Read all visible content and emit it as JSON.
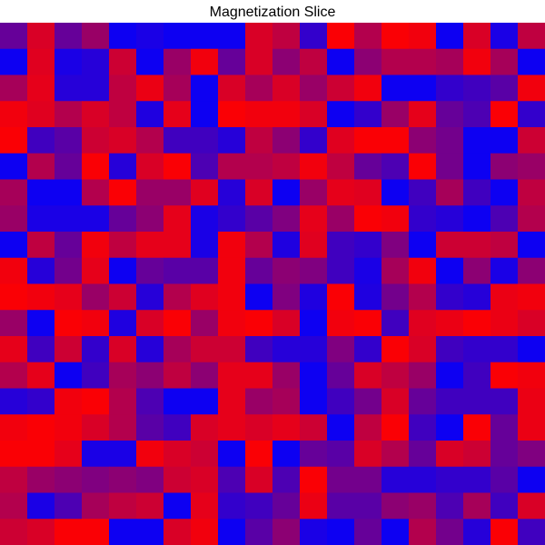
{
  "chart_data": {
    "type": "heatmap",
    "title": "Magnetization Slice",
    "rows": 20,
    "cols": 20,
    "colormap": {
      "low": "#0000ff",
      "high": "#ff0000"
    },
    "value_range": [
      0,
      1
    ],
    "values": [
      [
        0.4,
        0.85,
        0.4,
        0.6,
        0.05,
        0.1,
        0.05,
        0.05,
        0.05,
        0.85,
        0.75,
        0.2,
        0.98,
        0.7,
        0.98,
        0.95,
        0.05,
        0.85,
        0.1,
        0.75
      ],
      [
        0.05,
        0.88,
        0.1,
        0.15,
        0.8,
        0.05,
        0.6,
        0.95,
        0.4,
        0.85,
        0.55,
        0.75,
        0.05,
        0.55,
        0.7,
        0.7,
        0.65,
        0.95,
        0.65,
        0.05
      ],
      [
        0.65,
        0.9,
        0.15,
        0.15,
        0.75,
        0.92,
        0.65,
        0.05,
        0.85,
        0.65,
        0.85,
        0.6,
        0.8,
        0.95,
        0.05,
        0.05,
        0.2,
        0.25,
        0.35,
        0.95
      ],
      [
        0.95,
        0.88,
        0.7,
        0.85,
        0.75,
        0.12,
        0.9,
        0.05,
        0.98,
        0.95,
        0.95,
        0.85,
        0.05,
        0.2,
        0.6,
        0.9,
        0.4,
        0.3,
        0.98,
        0.2
      ],
      [
        0.98,
        0.25,
        0.35,
        0.8,
        0.85,
        0.7,
        0.25,
        0.25,
        0.15,
        0.75,
        0.55,
        0.2,
        0.88,
        0.98,
        0.98,
        0.55,
        0.45,
        0.05,
        0.05,
        0.8
      ],
      [
        0.05,
        0.7,
        0.4,
        0.98,
        0.15,
        0.85,
        0.98,
        0.3,
        0.7,
        0.7,
        0.75,
        0.95,
        0.75,
        0.4,
        0.3,
        0.98,
        0.45,
        0.05,
        0.55,
        0.6
      ],
      [
        0.65,
        0.05,
        0.05,
        0.7,
        0.98,
        0.6,
        0.6,
        0.88,
        0.15,
        0.85,
        0.05,
        0.6,
        0.9,
        0.88,
        0.05,
        0.25,
        0.65,
        0.25,
        0.05,
        0.75
      ],
      [
        0.6,
        0.1,
        0.1,
        0.1,
        0.4,
        0.55,
        0.9,
        0.1,
        0.2,
        0.35,
        0.5,
        0.9,
        0.6,
        0.98,
        0.95,
        0.2,
        0.15,
        0.05,
        0.3,
        0.7
      ],
      [
        0.05,
        0.75,
        0.4,
        0.95,
        0.75,
        0.9,
        0.9,
        0.1,
        0.95,
        0.7,
        0.12,
        0.88,
        0.25,
        0.2,
        0.5,
        0.05,
        0.8,
        0.8,
        0.75,
        0.05
      ],
      [
        0.95,
        0.15,
        0.45,
        0.9,
        0.05,
        0.4,
        0.35,
        0.35,
        0.95,
        0.4,
        0.55,
        0.5,
        0.25,
        0.1,
        0.65,
        0.95,
        0.05,
        0.55,
        0.1,
        0.55
      ],
      [
        0.98,
        0.95,
        0.9,
        0.6,
        0.8,
        0.15,
        0.7,
        0.88,
        0.95,
        0.05,
        0.5,
        0.12,
        0.98,
        0.12,
        0.45,
        0.7,
        0.2,
        0.15,
        0.92,
        0.95
      ],
      [
        0.6,
        0.05,
        0.98,
        0.95,
        0.12,
        0.85,
        0.98,
        0.6,
        0.95,
        0.98,
        0.85,
        0.05,
        0.95,
        0.98,
        0.25,
        0.88,
        0.92,
        0.98,
        0.92,
        0.85
      ],
      [
        0.9,
        0.25,
        0.8,
        0.2,
        0.85,
        0.15,
        0.65,
        0.8,
        0.8,
        0.25,
        0.15,
        0.15,
        0.5,
        0.2,
        0.98,
        0.85,
        0.25,
        0.2,
        0.2,
        0.05
      ],
      [
        0.7,
        0.9,
        0.05,
        0.25,
        0.65,
        0.55,
        0.75,
        0.55,
        0.9,
        0.9,
        0.6,
        0.05,
        0.4,
        0.85,
        0.75,
        0.6,
        0.05,
        0.25,
        0.98,
        0.95
      ],
      [
        0.15,
        0.2,
        0.95,
        0.98,
        0.7,
        0.3,
        0.05,
        0.05,
        0.9,
        0.6,
        0.65,
        0.05,
        0.25,
        0.45,
        0.85,
        0.4,
        0.25,
        0.25,
        0.25,
        0.92
      ],
      [
        0.95,
        0.98,
        0.95,
        0.85,
        0.7,
        0.35,
        0.25,
        0.85,
        0.9,
        0.85,
        0.9,
        0.8,
        0.05,
        0.75,
        0.98,
        0.25,
        0.05,
        0.98,
        0.4,
        0.92
      ],
      [
        0.98,
        0.98,
        0.9,
        0.1,
        0.1,
        0.95,
        0.85,
        0.8,
        0.05,
        0.98,
        0.05,
        0.4,
        0.35,
        0.85,
        0.7,
        0.4,
        0.85,
        0.8,
        0.4,
        0.5
      ],
      [
        0.75,
        0.6,
        0.55,
        0.5,
        0.55,
        0.5,
        0.8,
        0.85,
        0.3,
        0.85,
        0.3,
        0.98,
        0.45,
        0.45,
        0.15,
        0.15,
        0.2,
        0.2,
        0.35,
        0.05
      ],
      [
        0.7,
        0.1,
        0.3,
        0.65,
        0.75,
        0.8,
        0.05,
        0.9,
        0.2,
        0.25,
        0.4,
        0.92,
        0.35,
        0.35,
        0.55,
        0.6,
        0.3,
        0.65,
        0.25,
        0.85
      ],
      [
        0.8,
        0.85,
        0.98,
        0.98,
        0.05,
        0.05,
        0.85,
        0.95,
        0.05,
        0.35,
        0.55,
        0.1,
        0.05,
        0.4,
        0.05,
        0.7,
        0.45,
        0.15,
        0.98,
        0.25
      ]
    ]
  }
}
